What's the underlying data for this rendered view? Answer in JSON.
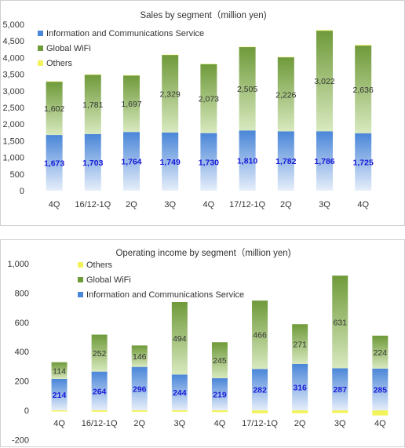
{
  "colors": {
    "info_top": "#4a86d8",
    "info_bottom": "#e6eefa",
    "wifi_top": "#6f9a3a",
    "wifi_bottom": "#d8e9bf",
    "others": "#f2f25a",
    "neg_label": "#e00000",
    "value_info": "#1a1ad6"
  },
  "chart_data": [
    {
      "type": "bar",
      "stacked": true,
      "title": "Sales by segment（million  yen)",
      "categories": [
        "4Q",
        "16/12-1Q",
        "2Q",
        "3Q",
        "4Q",
        "17/12-1Q",
        "2Q",
        "3Q",
        "4Q"
      ],
      "series": [
        {
          "name": "Information and  Communications Service",
          "values": [
            1673,
            1703,
            1764,
            1749,
            1730,
            1810,
            1782,
            1786,
            1725
          ],
          "labels": [
            "1,673",
            "1,703",
            "1,764",
            "1,749",
            "1,730",
            "1,810",
            "1,782",
            "1,786",
            "1,725"
          ]
        },
        {
          "name": "Global WiFi",
          "values": [
            1602,
            1781,
            1697,
            2329,
            2073,
            2505,
            2226,
            3022,
            2636
          ],
          "labels": [
            "1,602",
            "1,781",
            "1,697",
            "2,329",
            "2,073",
            "2,505",
            "2,226",
            "3,022",
            "2,636"
          ]
        },
        {
          "name": "Others",
          "values": [
            10,
            10,
            10,
            10,
            10,
            10,
            10,
            20,
            20
          ]
        }
      ],
      "ylim": [
        0,
        5000
      ],
      "yticks": [
        "0",
        "500",
        "1,000",
        "1,500",
        "2,000",
        "2,500",
        "3,000",
        "3,500",
        "4,000",
        "4,500",
        "5,000"
      ],
      "legend": "top-left"
    },
    {
      "type": "bar",
      "stacked": true,
      "title": "Operating income by segment（million yen)",
      "categories": [
        "4Q",
        "16/12-1Q",
        "2Q",
        "3Q",
        "4Q",
        "17/12-1Q",
        "2Q",
        "3Q",
        "4Q"
      ],
      "series": [
        {
          "name": "Others",
          "values": [
            -8,
            -10,
            -10,
            -10,
            -12,
            -20,
            -20,
            -18,
            -35
          ]
        },
        {
          "name": "Global WiFi",
          "values": [
            114,
            252,
            146,
            494,
            245,
            466,
            271,
            631,
            224
          ],
          "labels": [
            "114",
            "252",
            "146",
            "494",
            "245",
            "466",
            "271",
            "631",
            "224"
          ]
        },
        {
          "name": "Information and  Communications Service",
          "values": [
            214,
            264,
            296,
            244,
            219,
            282,
            316,
            287,
            285
          ],
          "labels": [
            "214",
            "264",
            "296",
            "244",
            "219",
            "282",
            "316",
            "287",
            "285"
          ]
        }
      ],
      "ylim": [
        -200,
        1000
      ],
      "yticks": [
        "-200",
        "0",
        "200",
        "400",
        "600",
        "800",
        "1,000"
      ],
      "legend": "top-left"
    }
  ]
}
